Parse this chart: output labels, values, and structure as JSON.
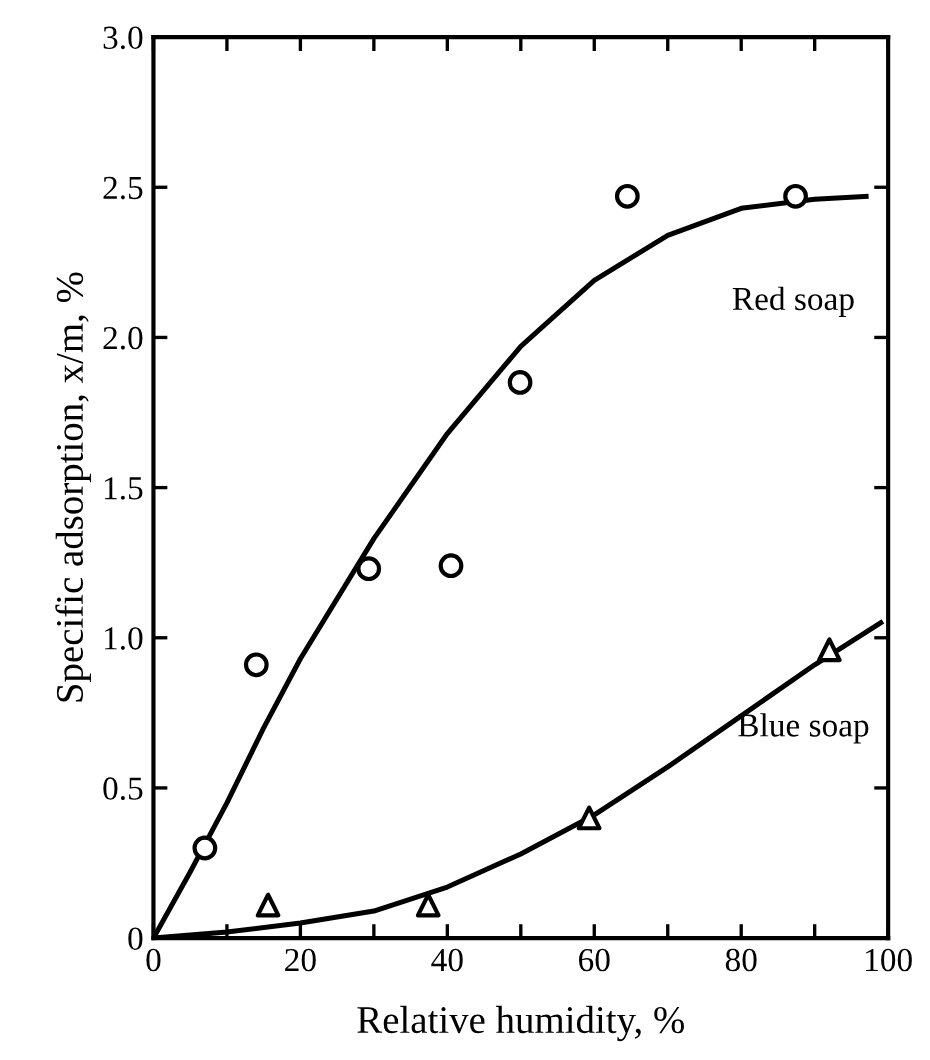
{
  "chart_data": {
    "type": "line",
    "xlabel": "Relative humidity, %",
    "ylabel": "Specific adsorption, x/m, %",
    "xlim": [
      0,
      100
    ],
    "ylim": [
      0,
      3.0
    ],
    "xticks": [
      0,
      {
        "value": 10,
        "label": null
      },
      20,
      {
        "value": 30,
        "label": null
      },
      40,
      {
        "value": 50,
        "label": null
      },
      60,
      {
        "value": 70,
        "label": null
      },
      80,
      {
        "value": 90,
        "label": null
      },
      100
    ],
    "yticks": [
      0,
      0.5,
      {
        "value": 1,
        "label": "1.0"
      },
      1.5,
      {
        "value": 2,
        "label": "2.0"
      },
      2.5,
      {
        "value": 3,
        "label": "3.0"
      }
    ],
    "grid": false,
    "legend": false,
    "series": [
      {
        "type": "scatter",
        "marker": "circle",
        "color": "#000000",
        "x": [
          7,
          14,
          29.3,
          40.5,
          49.9,
          64.5,
          87.4
        ],
        "values": [
          0.3,
          0.91,
          1.23,
          1.24,
          1.85,
          2.47,
          2.47
        ]
      },
      {
        "name": "Red soap",
        "marker": "none",
        "line_style": "solid",
        "color": "#000000",
        "x": [
          0,
          5,
          10,
          15,
          20,
          30,
          40,
          50,
          60,
          70,
          80,
          90,
          97
        ],
        "values": [
          0,
          0.22,
          0.45,
          0.7,
          0.93,
          1.33,
          1.68,
          1.97,
          2.19,
          2.34,
          2.43,
          2.46,
          2.47
        ]
      },
      {
        "type": "scatter",
        "marker": "triangle",
        "color": "#000000",
        "x": [
          15.6,
          37.4,
          59.3,
          92
        ],
        "values": [
          0.11,
          0.11,
          0.4,
          0.96
        ]
      },
      {
        "name": "Blue soap",
        "marker": "none",
        "line_style": "solid",
        "color": "#000000",
        "x": [
          0,
          10,
          20,
          30,
          40,
          50,
          60,
          70,
          80,
          90,
          99
        ],
        "values": [
          0,
          0.02,
          0.05,
          0.09,
          0.17,
          0.28,
          0.41,
          0.57,
          0.74,
          0.91,
          1.05
        ]
      }
    ]
  }
}
